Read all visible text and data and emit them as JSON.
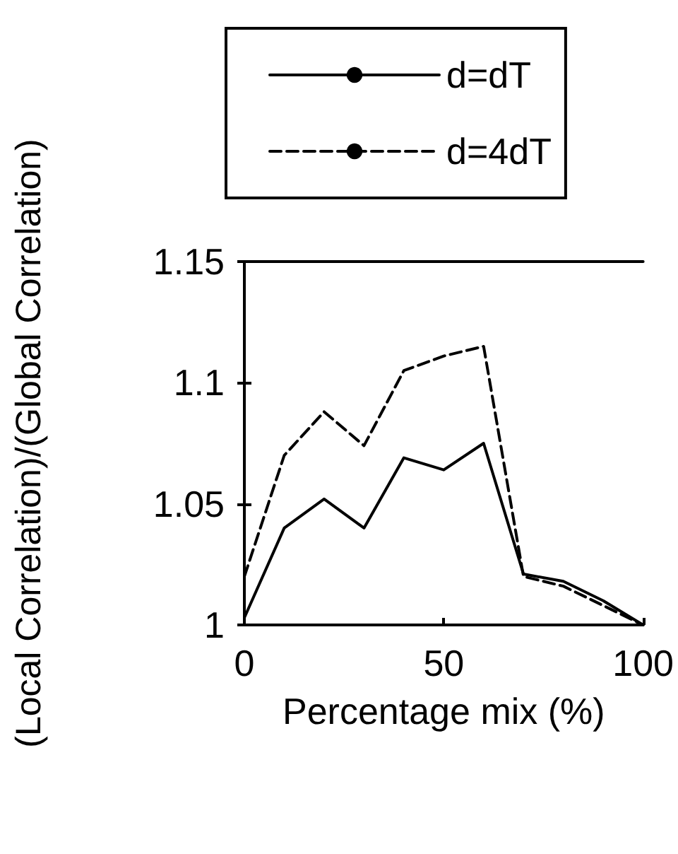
{
  "chart_data": {
    "type": "line",
    "xlabel": "Percentage mix (%)",
    "ylabel": "(Local Correlation)/(Global Correlation)",
    "x": [
      0,
      10,
      20,
      30,
      40,
      50,
      60,
      70,
      80,
      90,
      100
    ],
    "series": [
      {
        "name": "d=dT",
        "color": "#000000",
        "line_style": "solid",
        "values": [
          1.003,
          1.04,
          1.052,
          1.04,
          1.069,
          1.064,
          1.075,
          1.021,
          1.018,
          1.01,
          1.0
        ]
      },
      {
        "name": "d=4dT",
        "color": "#000000",
        "line_style": "dashed",
        "values": [
          1.02,
          1.07,
          1.088,
          1.074,
          1.105,
          1.111,
          1.115,
          1.02,
          1.016,
          1.008,
          1.0
        ]
      }
    ],
    "xlim": [
      0,
      100
    ],
    "xticks": [
      0,
      50,
      100
    ],
    "ylim": [
      1,
      1.15
    ],
    "yticks": [
      1,
      1.05,
      1.1,
      1.15
    ],
    "grid": false,
    "legend": "top",
    "marker": "none"
  }
}
